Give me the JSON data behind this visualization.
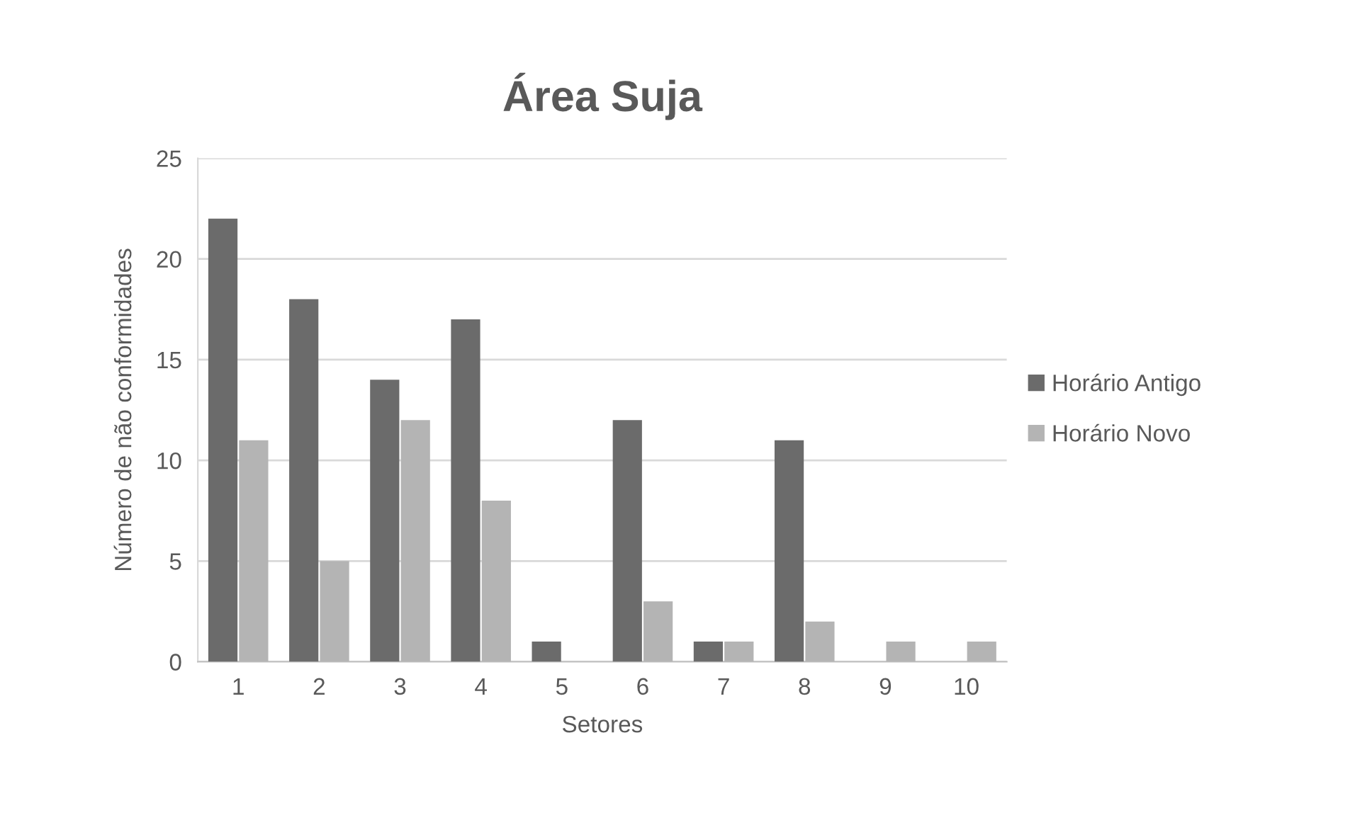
{
  "chart_data": {
    "type": "bar",
    "title": "Área Suja",
    "xlabel": "Setores",
    "ylabel": "Número de não conformidades",
    "categories": [
      "1",
      "2",
      "3",
      "4",
      "5",
      "6",
      "7",
      "8",
      "9",
      "10"
    ],
    "series": [
      {
        "name": "Horário Antigo",
        "color": "#6b6b6b",
        "values": [
          22,
          18,
          14,
          17,
          1,
          12,
          1,
          11,
          0,
          0
        ]
      },
      {
        "name": "Horário Novo",
        "color": "#b4b4b4",
        "values": [
          11,
          5,
          12,
          8,
          0,
          3,
          1,
          2,
          1,
          1
        ]
      }
    ],
    "ylim": [
      0,
      25
    ],
    "yticks": [
      0,
      5,
      10,
      15,
      20,
      25
    ],
    "grid": "y",
    "legend": "right"
  }
}
